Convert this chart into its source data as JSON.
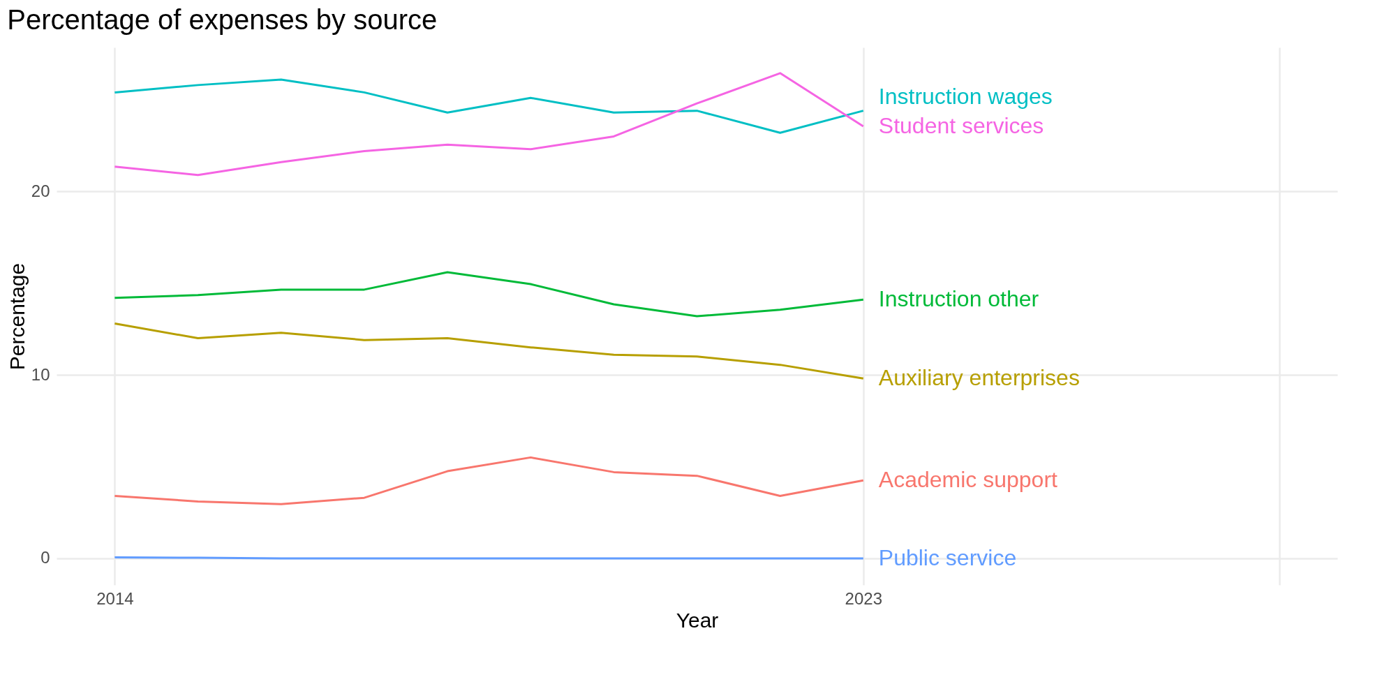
{
  "chart_data": {
    "type": "line",
    "title": "Percentage of expenses by source",
    "xlabel": "Year",
    "ylabel": "Percentage",
    "x": [
      2014,
      2015,
      2016,
      2017,
      2018,
      2019,
      2020,
      2021,
      2022,
      2023
    ],
    "series": [
      {
        "name": "Academic support",
        "color": "#f8766d",
        "values": [
          3.4,
          3.1,
          2.95,
          3.3,
          4.75,
          5.5,
          4.7,
          4.5,
          3.4,
          4.25
        ]
      },
      {
        "name": "Auxiliary enterprises",
        "color": "#b79f00",
        "values": [
          12.8,
          12.0,
          12.3,
          11.9,
          12.0,
          11.5,
          11.1,
          11.0,
          10.55,
          9.8
        ]
      },
      {
        "name": "Instruction other",
        "color": "#00ba38",
        "values": [
          14.2,
          14.35,
          14.65,
          14.65,
          15.6,
          14.95,
          13.85,
          13.2,
          13.55,
          14.1
        ]
      },
      {
        "name": "Instruction wages",
        "color": "#00bfc4",
        "values": [
          25.4,
          25.8,
          26.1,
          25.4,
          24.3,
          25.1,
          24.3,
          24.4,
          23.2,
          24.4
        ]
      },
      {
        "name": "Public service",
        "color": "#619cff",
        "values": [
          0.05,
          0.03,
          0,
          0,
          0,
          0,
          0,
          0,
          0,
          0
        ]
      },
      {
        "name": "Student services",
        "color": "#f564e3",
        "values": [
          21.35,
          20.9,
          21.6,
          22.2,
          22.55,
          22.3,
          23.0,
          24.8,
          26.45,
          23.55
        ]
      }
    ],
    "xlim": [
      2013.3,
      2028.7
    ],
    "xticks": [
      2014,
      2023,
      {
        "value": 2028,
        "label": null
      }
    ],
    "ylim": [
      -1.45,
      27.85
    ],
    "yticks": [
      0,
      10,
      20
    ],
    "grid": true,
    "legend": false,
    "line_style": "solid",
    "marker": "none"
  }
}
